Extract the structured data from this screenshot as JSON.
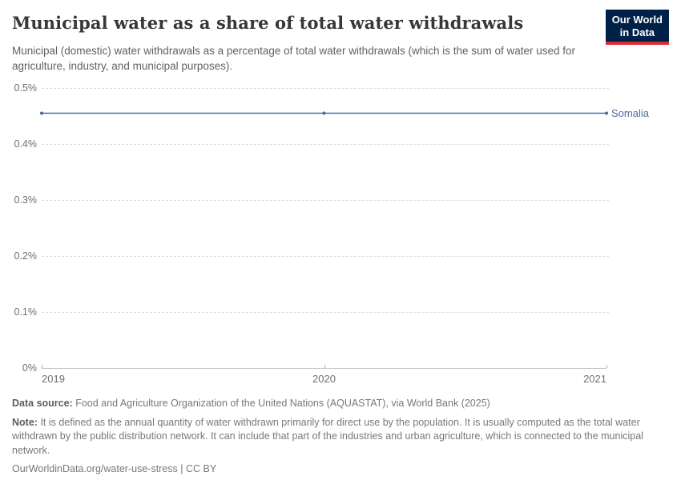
{
  "logo": {
    "line1": "Our World",
    "line2": "in Data",
    "bg_color": "#002147",
    "accent_color": "#dc2c34"
  },
  "header": {
    "title": "Municipal water as a share of total water withdrawals",
    "subtitle": "Municipal (domestic) water withdrawals as a percentage of total water withdrawals (which is the sum of water used for agriculture, industry, and municipal purposes)."
  },
  "chart_data": {
    "type": "line",
    "title": "Municipal water as a share of total water withdrawals",
    "xlabel": "",
    "ylabel": "",
    "unit": "%",
    "xlim": [
      2019,
      2021
    ],
    "ylim": [
      0,
      0.5
    ],
    "x_ticks": [
      2019,
      2020,
      2021
    ],
    "x_tick_labels": [
      "2019",
      "2020",
      "2021"
    ],
    "y_ticks": [
      0,
      0.1,
      0.2,
      0.3,
      0.4,
      0.5
    ],
    "y_tick_labels": [
      "0%",
      "0.1%",
      "0.2%",
      "0.3%",
      "0.4%",
      "0.5%"
    ],
    "grid": "horizontal-dashed",
    "legend_position": "end-of-line-label",
    "series": [
      {
        "name": "Somalia",
        "color": "#4c6a9c",
        "x": [
          2019,
          2020,
          2021
        ],
        "values": [
          0.455,
          0.455,
          0.455
        ]
      }
    ]
  },
  "footer": {
    "data_source_label": "Data source:",
    "data_source_text": "Food and Agriculture Organization of the United Nations (AQUASTAT), via World Bank (2025)",
    "note_label": "Note:",
    "note_text": "It is defined as the annual quantity of water withdrawn primarily for direct use by the population. It is usually computed as the total water withdrawn by the public distribution network. It can include that part of the industries and urban agriculture, which is connected to the municipal network.",
    "citation": "OurWorldinData.org/water-use-stress | CC BY"
  }
}
